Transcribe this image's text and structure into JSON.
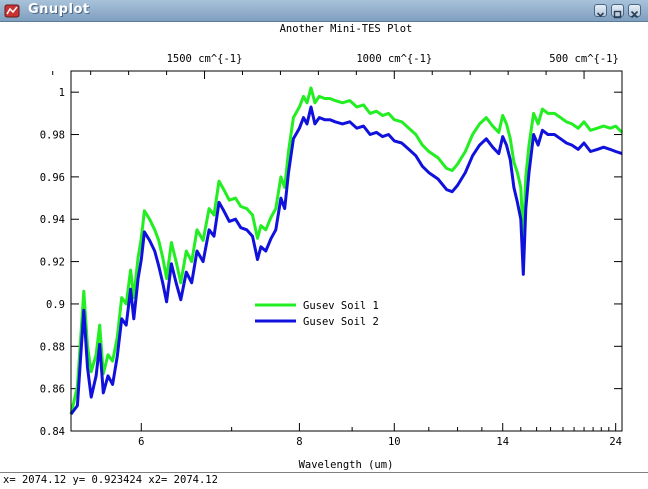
{
  "window": {
    "title": "Gnuplot",
    "accent": "#8aa8c8",
    "icon": "gnuplot-app-icon"
  },
  "controls": {
    "minimize_icon": "chevron-down-icon",
    "maximize_icon": "square-icon",
    "close_icon": "close-icon"
  },
  "status": {
    "text": "x= 2074.12 y= 0.923424 x2= 2074.12"
  },
  "chart_data": {
    "type": "line",
    "title": "Another Mini-TES Plot",
    "xlabel": "Wavelength (um)",
    "x_scale": "reciprocal",
    "xlim": [
      5.4,
      25
    ],
    "ylim": [
      0.84,
      1.01
    ],
    "x_ticks": [
      {
        "value": 6,
        "label": "6"
      },
      {
        "value": 8,
        "label": "8"
      },
      {
        "value": 10,
        "label": "10"
      },
      {
        "value": 14,
        "label": "14"
      },
      {
        "value": 24,
        "label": "24"
      }
    ],
    "x_minor_ticks": [
      7,
      9,
      11,
      12,
      13,
      15,
      16,
      17,
      18,
      19,
      20,
      21,
      22,
      23
    ],
    "y_ticks": [
      {
        "value": 0.84,
        "label": "0.84"
      },
      {
        "value": 0.86,
        "label": "0.86"
      },
      {
        "value": 0.88,
        "label": "0.88"
      },
      {
        "value": 0.9,
        "label": "0.9"
      },
      {
        "value": 0.92,
        "label": "0.92"
      },
      {
        "value": 0.94,
        "label": "0.94"
      },
      {
        "value": 0.96,
        "label": "0.96"
      },
      {
        "value": 0.98,
        "label": "0.98"
      },
      {
        "value": 1,
        "label": "1"
      }
    ],
    "x2_ticks": [
      {
        "value": 1500,
        "label": "1500 cm^{-1}"
      },
      {
        "value": 1000,
        "label": "1000 cm^{-1}"
      },
      {
        "value": 500,
        "label": "500 cm^{-1}"
      }
    ],
    "x2_minor_ticks": [
      1900,
      1800,
      1700,
      1600,
      1400,
      1300,
      1200,
      1100,
      900,
      800,
      700,
      600
    ],
    "grid": false,
    "legend_position": "center-left",
    "series": [
      {
        "name": "Gusev Soil 1",
        "color": "#22ee22",
        "points": [
          [
            5.4,
            0.848
          ],
          [
            5.45,
            0.861
          ],
          [
            5.5,
            0.906
          ],
          [
            5.53,
            0.88
          ],
          [
            5.56,
            0.868
          ],
          [
            5.6,
            0.876
          ],
          [
            5.63,
            0.89
          ],
          [
            5.66,
            0.867
          ],
          [
            5.7,
            0.876
          ],
          [
            5.74,
            0.873
          ],
          [
            5.78,
            0.884
          ],
          [
            5.82,
            0.903
          ],
          [
            5.86,
            0.9
          ],
          [
            5.9,
            0.916
          ],
          [
            5.93,
            0.903
          ],
          [
            5.97,
            0.922
          ],
          [
            6.0,
            0.931
          ],
          [
            6.03,
            0.944
          ],
          [
            6.08,
            0.94
          ],
          [
            6.13,
            0.935
          ],
          [
            6.17,
            0.93
          ],
          [
            6.21,
            0.922
          ],
          [
            6.25,
            0.912
          ],
          [
            6.3,
            0.929
          ],
          [
            6.35,
            0.92
          ],
          [
            6.4,
            0.91
          ],
          [
            6.46,
            0.925
          ],
          [
            6.52,
            0.92
          ],
          [
            6.58,
            0.935
          ],
          [
            6.65,
            0.93
          ],
          [
            6.72,
            0.945
          ],
          [
            6.78,
            0.942
          ],
          [
            6.84,
            0.958
          ],
          [
            6.9,
            0.954
          ],
          [
            6.97,
            0.949
          ],
          [
            7.05,
            0.95
          ],
          [
            7.12,
            0.946
          ],
          [
            7.2,
            0.945
          ],
          [
            7.28,
            0.942
          ],
          [
            7.35,
            0.931
          ],
          [
            7.4,
            0.937
          ],
          [
            7.47,
            0.935
          ],
          [
            7.55,
            0.941
          ],
          [
            7.62,
            0.945
          ],
          [
            7.7,
            0.96
          ],
          [
            7.76,
            0.955
          ],
          [
            7.82,
            0.972
          ],
          [
            7.9,
            0.988
          ],
          [
            8.0,
            0.993
          ],
          [
            8.07,
            0.998
          ],
          [
            8.13,
            0.995
          ],
          [
            8.2,
            1.002
          ],
          [
            8.27,
            0.995
          ],
          [
            8.35,
            0.998
          ],
          [
            8.45,
            0.997
          ],
          [
            8.55,
            0.997
          ],
          [
            8.65,
            0.996
          ],
          [
            8.8,
            0.995
          ],
          [
            8.95,
            0.996
          ],
          [
            9.1,
            0.993
          ],
          [
            9.25,
            0.994
          ],
          [
            9.4,
            0.99
          ],
          [
            9.55,
            0.991
          ],
          [
            9.7,
            0.989
          ],
          [
            9.85,
            0.99
          ],
          [
            10.0,
            0.987
          ],
          [
            10.2,
            0.986
          ],
          [
            10.4,
            0.983
          ],
          [
            10.6,
            0.98
          ],
          [
            10.8,
            0.975
          ],
          [
            11.0,
            0.972
          ],
          [
            11.3,
            0.969
          ],
          [
            11.6,
            0.964
          ],
          [
            11.8,
            0.963
          ],
          [
            12.0,
            0.966
          ],
          [
            12.3,
            0.972
          ],
          [
            12.6,
            0.98
          ],
          [
            12.9,
            0.985
          ],
          [
            13.2,
            0.988
          ],
          [
            13.5,
            0.984
          ],
          [
            13.8,
            0.981
          ],
          [
            14.0,
            0.989
          ],
          [
            14.2,
            0.985
          ],
          [
            14.4,
            0.978
          ],
          [
            14.6,
            0.967
          ],
          [
            14.8,
            0.962
          ],
          [
            15.0,
            0.955
          ],
          [
            15.15,
            0.93
          ],
          [
            15.3,
            0.96
          ],
          [
            15.5,
            0.975
          ],
          [
            15.8,
            0.99
          ],
          [
            16.1,
            0.985
          ],
          [
            16.4,
            0.992
          ],
          [
            16.8,
            0.99
          ],
          [
            17.3,
            0.99
          ],
          [
            17.8,
            0.988
          ],
          [
            18.3,
            0.986
          ],
          [
            18.8,
            0.985
          ],
          [
            19.4,
            0.983
          ],
          [
            20.0,
            0.986
          ],
          [
            20.7,
            0.982
          ],
          [
            21.5,
            0.983
          ],
          [
            22.3,
            0.984
          ],
          [
            23.2,
            0.983
          ],
          [
            24.0,
            0.984
          ],
          [
            25.0,
            0.981
          ]
        ]
      },
      {
        "name": "Gusev Soil 2",
        "color": "#1111dd",
        "points": [
          [
            5.4,
            0.848
          ],
          [
            5.45,
            0.852
          ],
          [
            5.5,
            0.897
          ],
          [
            5.53,
            0.87
          ],
          [
            5.56,
            0.856
          ],
          [
            5.6,
            0.866
          ],
          [
            5.63,
            0.881
          ],
          [
            5.66,
            0.858
          ],
          [
            5.7,
            0.866
          ],
          [
            5.74,
            0.862
          ],
          [
            5.78,
            0.875
          ],
          [
            5.82,
            0.893
          ],
          [
            5.86,
            0.89
          ],
          [
            5.9,
            0.907
          ],
          [
            5.93,
            0.893
          ],
          [
            5.97,
            0.912
          ],
          [
            6.0,
            0.921
          ],
          [
            6.03,
            0.934
          ],
          [
            6.08,
            0.93
          ],
          [
            6.13,
            0.925
          ],
          [
            6.17,
            0.918
          ],
          [
            6.21,
            0.91
          ],
          [
            6.25,
            0.901
          ],
          [
            6.3,
            0.919
          ],
          [
            6.35,
            0.91
          ],
          [
            6.4,
            0.902
          ],
          [
            6.46,
            0.915
          ],
          [
            6.52,
            0.91
          ],
          [
            6.58,
            0.925
          ],
          [
            6.65,
            0.92
          ],
          [
            6.72,
            0.935
          ],
          [
            6.78,
            0.932
          ],
          [
            6.84,
            0.948
          ],
          [
            6.9,
            0.944
          ],
          [
            6.97,
            0.939
          ],
          [
            7.05,
            0.94
          ],
          [
            7.12,
            0.936
          ],
          [
            7.2,
            0.935
          ],
          [
            7.28,
            0.932
          ],
          [
            7.35,
            0.921
          ],
          [
            7.4,
            0.927
          ],
          [
            7.47,
            0.925
          ],
          [
            7.55,
            0.931
          ],
          [
            7.62,
            0.935
          ],
          [
            7.7,
            0.95
          ],
          [
            7.76,
            0.945
          ],
          [
            7.82,
            0.962
          ],
          [
            7.9,
            0.978
          ],
          [
            8.0,
            0.983
          ],
          [
            8.07,
            0.988
          ],
          [
            8.13,
            0.985
          ],
          [
            8.2,
            0.993
          ],
          [
            8.27,
            0.985
          ],
          [
            8.35,
            0.988
          ],
          [
            8.45,
            0.987
          ],
          [
            8.55,
            0.987
          ],
          [
            8.65,
            0.986
          ],
          [
            8.8,
            0.985
          ],
          [
            8.95,
            0.986
          ],
          [
            9.1,
            0.983
          ],
          [
            9.25,
            0.984
          ],
          [
            9.4,
            0.98
          ],
          [
            9.55,
            0.981
          ],
          [
            9.7,
            0.979
          ],
          [
            9.85,
            0.98
          ],
          [
            10.0,
            0.977
          ],
          [
            10.2,
            0.976
          ],
          [
            10.4,
            0.973
          ],
          [
            10.6,
            0.97
          ],
          [
            10.8,
            0.965
          ],
          [
            11.0,
            0.962
          ],
          [
            11.3,
            0.959
          ],
          [
            11.6,
            0.954
          ],
          [
            11.8,
            0.953
          ],
          [
            12.0,
            0.956
          ],
          [
            12.3,
            0.962
          ],
          [
            12.6,
            0.97
          ],
          [
            12.9,
            0.975
          ],
          [
            13.2,
            0.978
          ],
          [
            13.5,
            0.974
          ],
          [
            13.8,
            0.971
          ],
          [
            14.0,
            0.979
          ],
          [
            14.2,
            0.975
          ],
          [
            14.4,
            0.968
          ],
          [
            14.6,
            0.955
          ],
          [
            14.8,
            0.948
          ],
          [
            15.0,
            0.94
          ],
          [
            15.15,
            0.914
          ],
          [
            15.3,
            0.945
          ],
          [
            15.5,
            0.962
          ],
          [
            15.8,
            0.98
          ],
          [
            16.1,
            0.975
          ],
          [
            16.4,
            0.982
          ],
          [
            16.8,
            0.98
          ],
          [
            17.3,
            0.98
          ],
          [
            17.8,
            0.978
          ],
          [
            18.3,
            0.976
          ],
          [
            18.8,
            0.975
          ],
          [
            19.4,
            0.973
          ],
          [
            20.0,
            0.976
          ],
          [
            20.7,
            0.972
          ],
          [
            21.5,
            0.973
          ],
          [
            22.3,
            0.974
          ],
          [
            23.2,
            0.973
          ],
          [
            24.0,
            0.972
          ],
          [
            25.0,
            0.971
          ]
        ]
      }
    ]
  }
}
